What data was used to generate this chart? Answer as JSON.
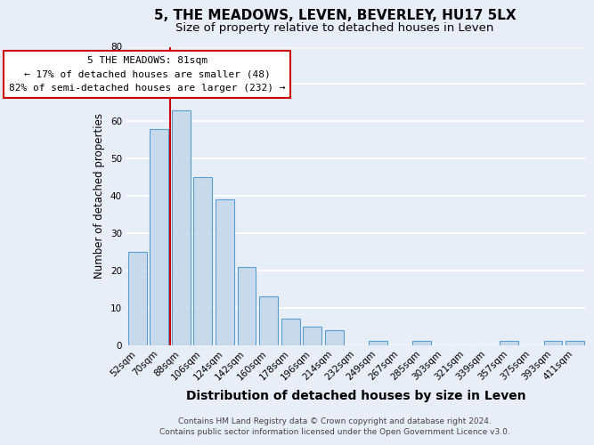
{
  "title": "5, THE MEADOWS, LEVEN, BEVERLEY, HU17 5LX",
  "subtitle": "Size of property relative to detached houses in Leven",
  "xlabel": "Distribution of detached houses by size in Leven",
  "ylabel": "Number of detached properties",
  "bar_labels": [
    "52sqm",
    "70sqm",
    "88sqm",
    "106sqm",
    "124sqm",
    "142sqm",
    "160sqm",
    "178sqm",
    "196sqm",
    "214sqm",
    "232sqm",
    "249sqm",
    "267sqm",
    "285sqm",
    "303sqm",
    "321sqm",
    "339sqm",
    "357sqm",
    "375sqm",
    "393sqm",
    "411sqm"
  ],
  "bar_values": [
    25,
    58,
    63,
    45,
    39,
    21,
    13,
    7,
    5,
    4,
    0,
    1,
    0,
    1,
    0,
    0,
    0,
    1,
    0,
    1,
    1
  ],
  "bar_color": "#c8d9eb",
  "bar_edge_color": "#5a9fd4",
  "vline_color": "#cc0000",
  "ylim": [
    0,
    80
  ],
  "yticks": [
    0,
    10,
    20,
    30,
    40,
    50,
    60,
    70,
    80
  ],
  "annotation_title": "5 THE MEADOWS: 81sqm",
  "annotation_line1": "← 17% of detached houses are smaller (48)",
  "annotation_line2": "82% of semi-detached houses are larger (232) →",
  "footer_line1": "Contains HM Land Registry data © Crown copyright and database right 2024.",
  "footer_line2": "Contains public sector information licensed under the Open Government Licence v3.0.",
  "background_color": "#e8eef7",
  "plot_bg_color": "#e8eef7",
  "grid_color": "#ffffff",
  "title_fontsize": 11,
  "subtitle_fontsize": 9.5,
  "xlabel_fontsize": 10,
  "ylabel_fontsize": 8.5,
  "tick_fontsize": 7.5,
  "annotation_fontsize": 8,
  "footer_fontsize": 6.5
}
